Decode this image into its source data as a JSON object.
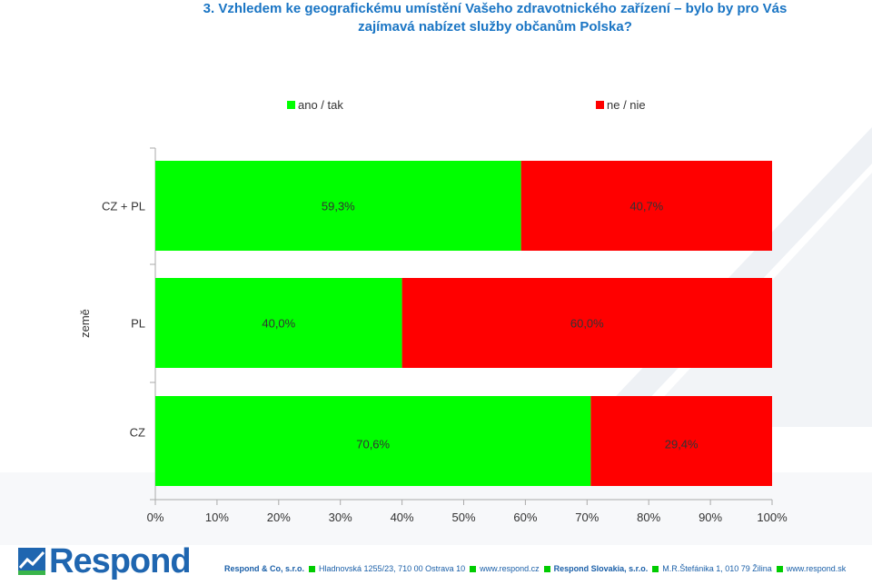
{
  "title_line1": "3. Vzhledem ke geografickému umístění Vašeho zdravotnického zařízení – bylo by pro Vás",
  "title_line2": "zajímavá nabízet služby občanům Polska?",
  "colors": {
    "yes": "#00ff00",
    "no": "#ff0000",
    "title": "#1a75c4",
    "brand": "#1f66b0"
  },
  "chart_data": {
    "type": "bar",
    "orientation": "horizontal",
    "stacked": true,
    "categories": [
      "CZ + PL",
      "PL",
      "CZ"
    ],
    "series": [
      {
        "name": "ano / tak",
        "values": [
          59.3,
          40.0,
          70.6
        ],
        "labels": [
          "59,3%",
          "40,0%",
          "70,6%"
        ]
      },
      {
        "name": "ne / nie",
        "values": [
          40.7,
          60.0,
          29.4
        ],
        "labels": [
          "40,7%",
          "60,0%",
          "29,4%"
        ]
      }
    ],
    "ylabel": "země",
    "xlim": [
      0,
      100
    ],
    "xticks": [
      "0%",
      "10%",
      "20%",
      "30%",
      "40%",
      "50%",
      "60%",
      "70%",
      "80%",
      "90%",
      "100%"
    ],
    "legend_position": "top",
    "grid": false
  },
  "footer": {
    "logo": "Respond",
    "company_cz": "Respond & Co, s.r.o.",
    "address_cz": "Hladnovská 1255/23, 710 00  Ostrava 10",
    "web_cz": "www.respond.cz",
    "company_sk": "Respond Slovakia, s.r.o.",
    "address_sk": "M.R.Štefánika 1, 010 79  Žilina",
    "web_sk": "www.respond.sk"
  }
}
